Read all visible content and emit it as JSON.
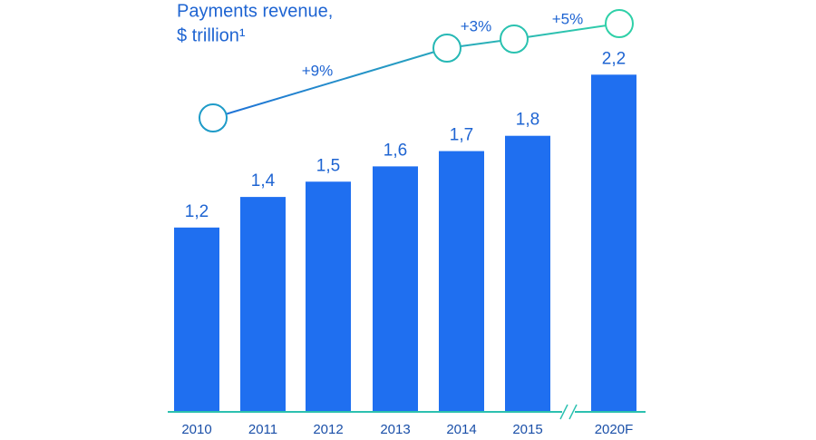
{
  "chart_data": {
    "type": "bar",
    "title": "Payments revenue,",
    "subtitle": "$ trillion¹",
    "categories": [
      "2010",
      "2011",
      "2012",
      "2013",
      "2014",
      "2015",
      "2020F"
    ],
    "values": [
      1.2,
      1.4,
      1.5,
      1.6,
      1.7,
      1.8,
      2.2
    ],
    "value_labels": [
      "1,2",
      "1,4",
      "1,5",
      "1,6",
      "1,7",
      "1,8",
      "2,2"
    ],
    "color": "#1f6ff0",
    "annotations": [
      "+9%",
      "+3%",
      "+5%"
    ]
  }
}
